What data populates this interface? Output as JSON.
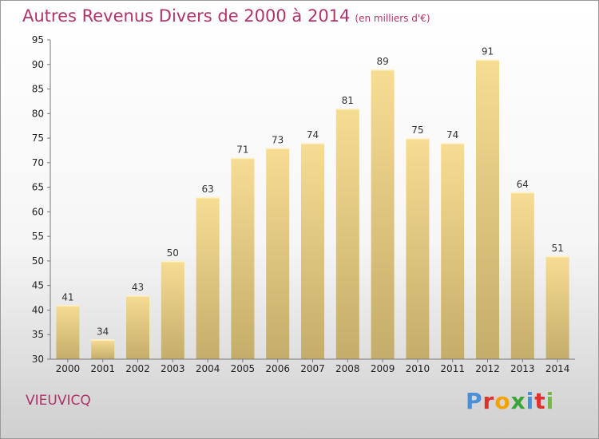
{
  "header": {
    "title": "Autres Revenus Divers de 2000 à 2014",
    "unit": "(en milliers d'€)"
  },
  "footer": {
    "commune": "VIEUVICQ",
    "logo": "Proxiti",
    "logo_colors": [
      "#4a90d9",
      "#e0302c",
      "#f2a300",
      "#3aa63a",
      "#4a90d9",
      "#e0302c",
      "#7ab648"
    ]
  },
  "chart_data": {
    "type": "bar",
    "title": "Autres Revenus Divers de 2000 à 2014",
    "subtitle": "(en milliers d'€)",
    "categories": [
      "2000",
      "2001",
      "2002",
      "2003",
      "2004",
      "2005",
      "2006",
      "2007",
      "2008",
      "2009",
      "2010",
      "2011",
      "2012",
      "2013",
      "2014"
    ],
    "values": [
      41,
      34,
      43,
      50,
      63,
      71,
      73,
      74,
      81,
      89,
      75,
      74,
      91,
      64,
      51
    ],
    "ylim": [
      30,
      95
    ],
    "yticks": [
      30,
      35,
      40,
      45,
      50,
      55,
      60,
      65,
      70,
      75,
      80,
      85,
      90,
      95
    ],
    "grid": false,
    "bar_color_top": "#f7dc93",
    "bar_color_bottom": "#c4ad6a"
  }
}
